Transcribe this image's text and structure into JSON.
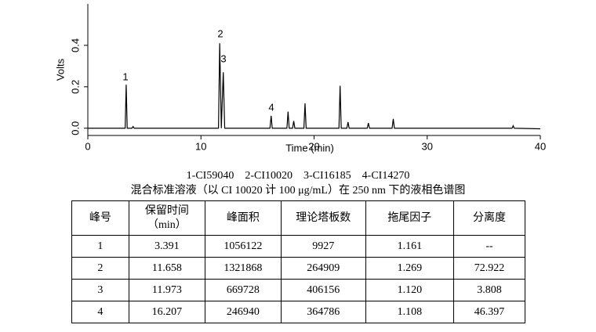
{
  "chart_data": {
    "type": "line",
    "x_label": "Time (min)",
    "y_label": "Volts",
    "x": [
      0,
      3.3,
      3.39,
      3.48,
      3.9,
      4.0,
      4.1,
      11.55,
      11.658,
      11.8,
      11.973,
      12.1,
      13.5,
      16.1,
      16.207,
      16.3,
      17.6,
      17.7,
      17.8,
      18.1,
      18.2,
      18.3,
      19.1,
      19.2,
      19.3,
      22.2,
      22.3,
      22.4,
      22.9,
      23.0,
      23.1,
      24.7,
      24.8,
      24.9,
      26.9,
      27.0,
      27.1,
      37.5,
      37.6,
      37.7,
      40
    ],
    "values": [
      0,
      0,
      0.21,
      0,
      0,
      0.008,
      0,
      0,
      0.41,
      0,
      0.27,
      0,
      0,
      0,
      0.06,
      0,
      0,
      0.08,
      0,
      0,
      0.035,
      0,
      0,
      0.12,
      0,
      0,
      0.205,
      0,
      0,
      0.03,
      0,
      0,
      0.025,
      0,
      0,
      0.045,
      0,
      0,
      0.012,
      0,
      -0.003
    ],
    "color": "#000000",
    "xlim": [
      0,
      40
    ],
    "xticks": [
      0,
      10,
      20,
      30,
      40
    ],
    "ylim": [
      -0.035,
      0.6
    ],
    "yticks": [
      {
        "value": 0,
        "label": "0.0"
      },
      {
        "value": 0.2,
        "label": "0.2"
      },
      {
        "value": 0.4,
        "label": "0.4"
      }
    ],
    "annotations": [
      "1",
      "2",
      "3",
      "4"
    ],
    "legend_line": "1-CI59040　2-CI10020　3-CI16185　4-CI14270",
    "caption": "混合标准溶液（以 CI 10020 计 100 μg/mL）在 250 nm 下的液相色谱图"
  },
  "table": {
    "header": [
      "峰号",
      [
        "保留时间",
        "（min）"
      ],
      "峰面积",
      "理论塔板数",
      "拖尾因子",
      "分离度"
    ],
    "rows": [
      [
        "1",
        "3.391",
        "1056122",
        "9927",
        "1.161",
        "--"
      ],
      [
        "2",
        "11.658",
        "1321868",
        "264909",
        "1.269",
        "72.922"
      ],
      [
        "3",
        "11.973",
        "669728",
        "406156",
        "1.120",
        "3.808"
      ],
      [
        "4",
        "16.207",
        "246940",
        "364786",
        "1.108",
        "46.397"
      ]
    ]
  }
}
